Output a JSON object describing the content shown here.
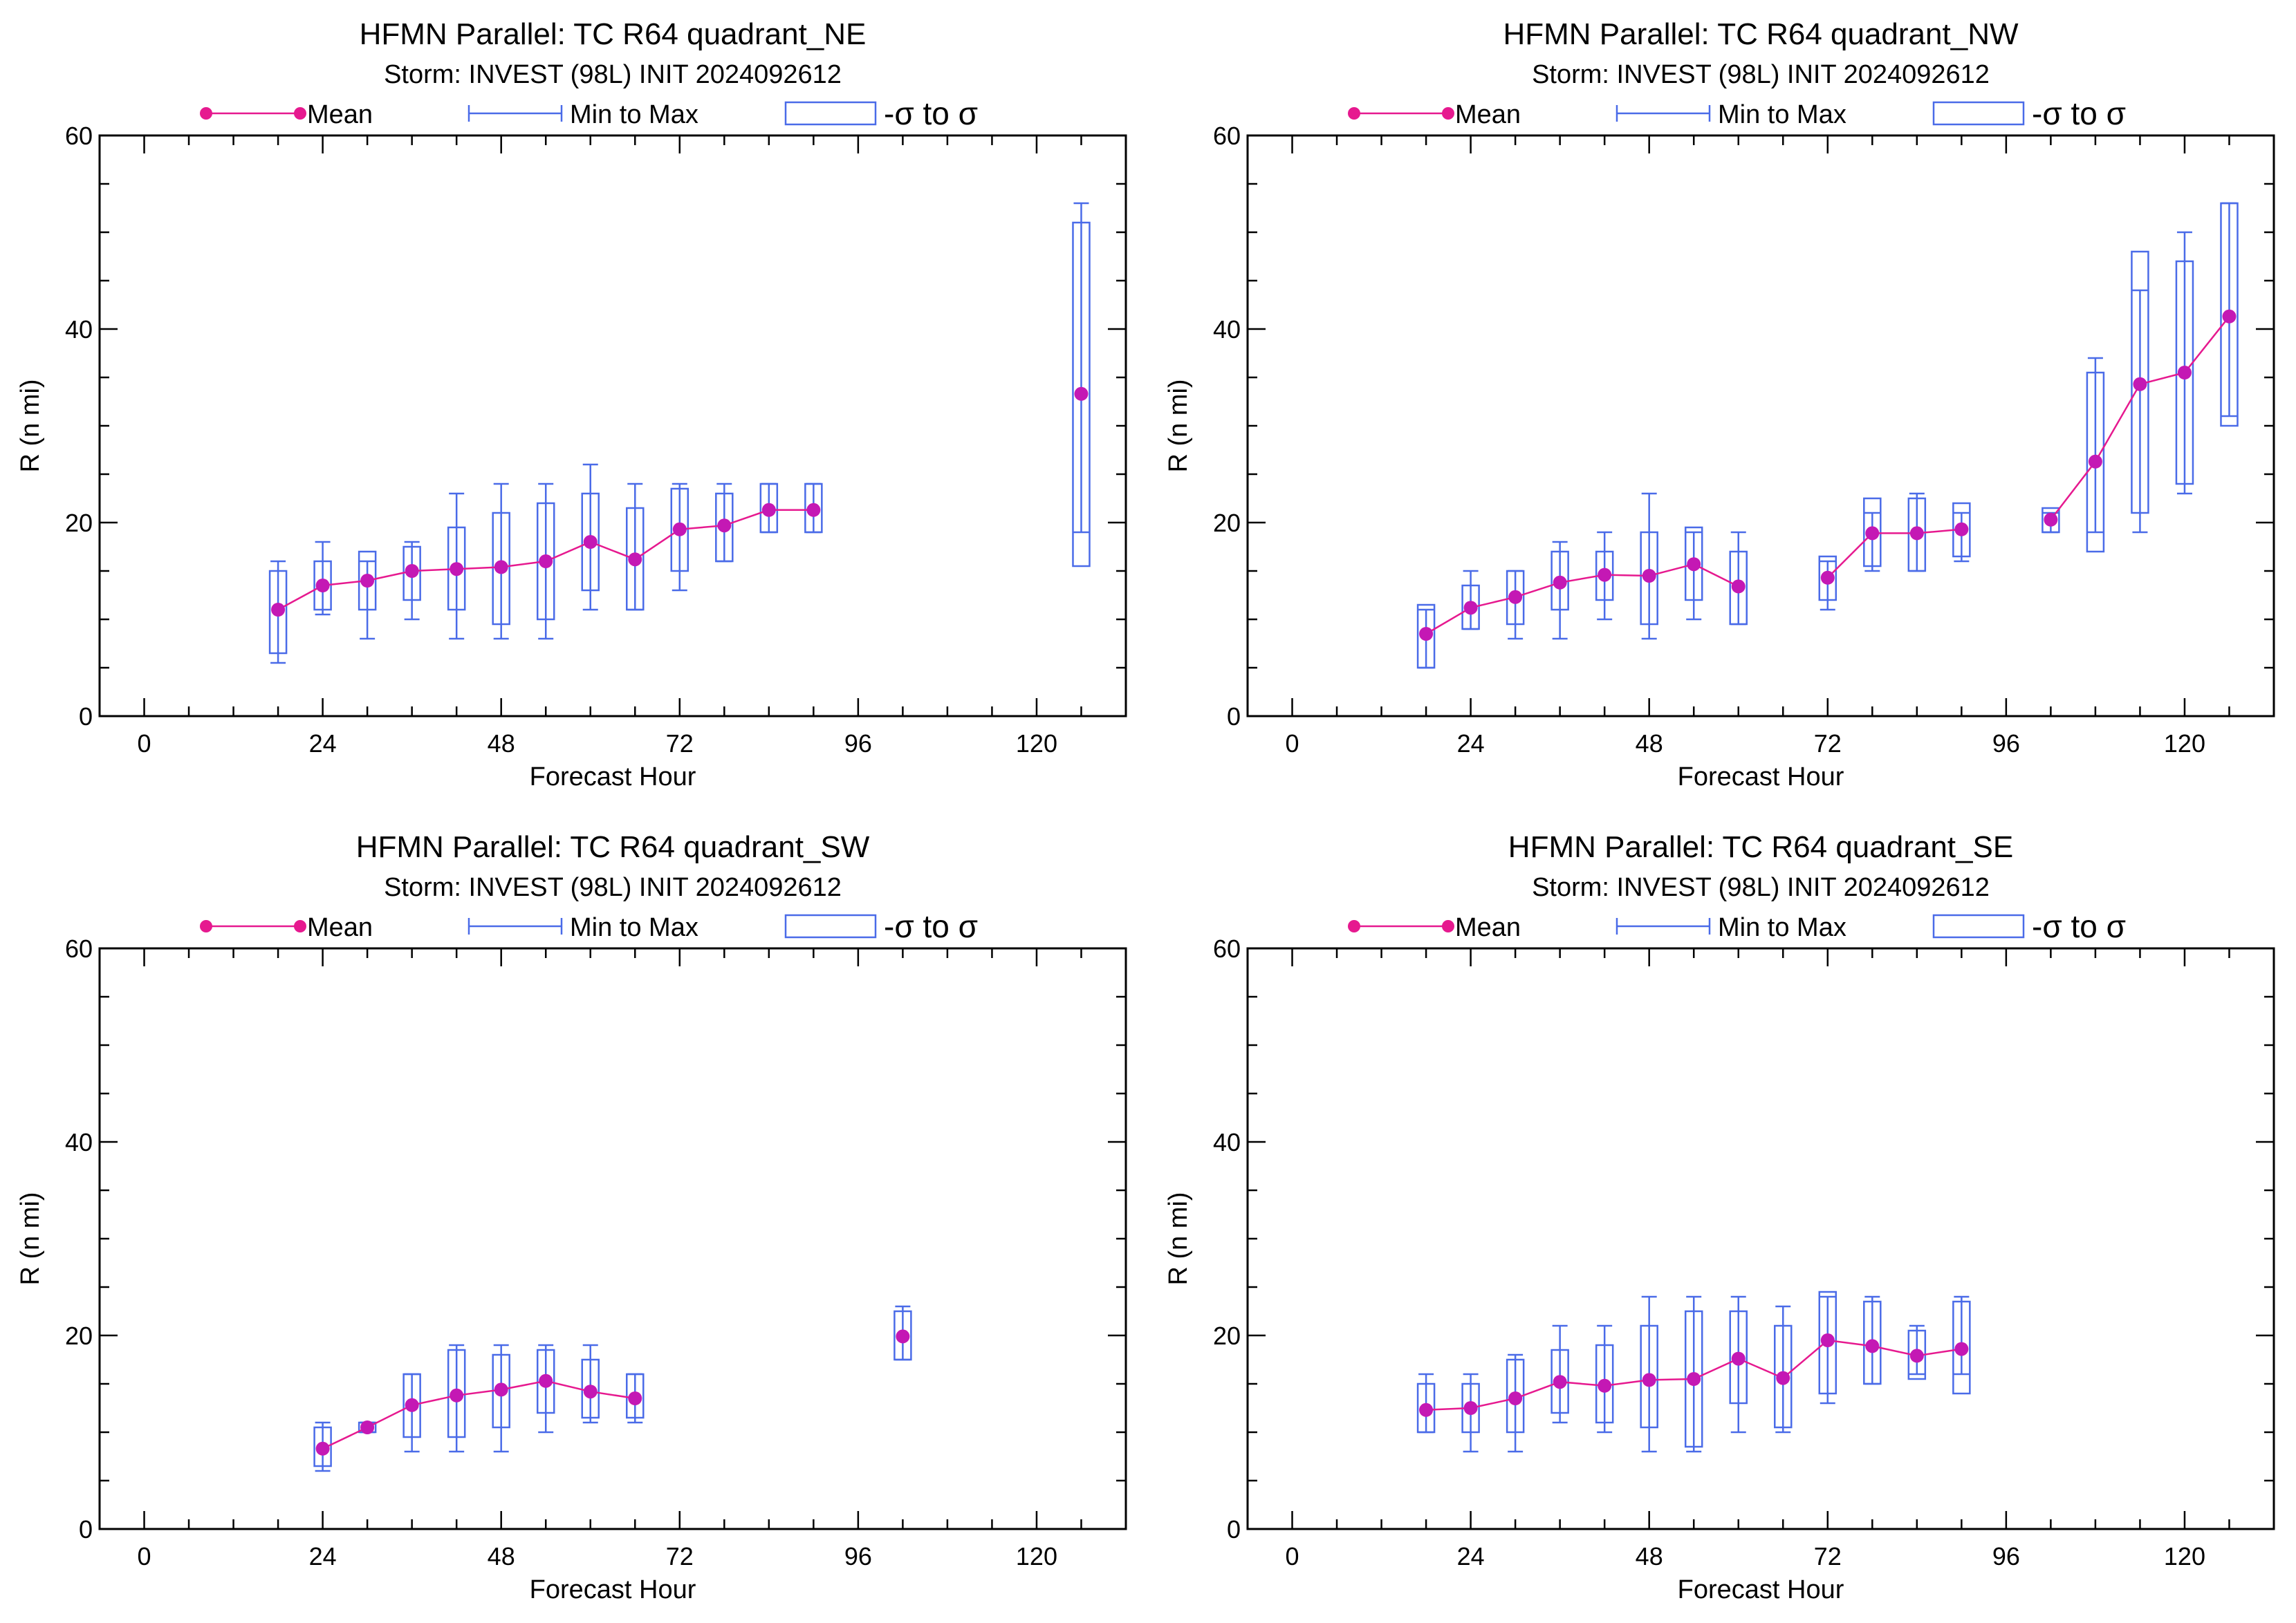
{
  "legend": {
    "mean": "Mean",
    "minmax": "Min to Max",
    "sigma": "-σ to σ"
  },
  "colors": {
    "mean": "#e6198f",
    "mean_dot": "#c418b4",
    "box": "#4a6be8"
  },
  "chart_data": [
    {
      "type": "box",
      "title": "HFMN Parallel: TC  R64 quadrant_NE",
      "subtitle": "Storm: INVEST (98L) INIT 2024092612",
      "xlabel": "Forecast Hour",
      "ylabel": "R (n mi)",
      "xlim": [
        -6,
        132
      ],
      "ylim": [
        0,
        60
      ],
      "xticks": [
        0,
        24,
        48,
        72,
        96,
        120
      ],
      "yticks": [
        0,
        20,
        40,
        60
      ],
      "legend_position": "top",
      "points": [
        {
          "x": 18,
          "mean": 11,
          "min": 5.5,
          "max": 16,
          "sd_lo": 6.5,
          "sd_hi": 15
        },
        {
          "x": 24,
          "mean": 13.5,
          "min": 10.5,
          "max": 18,
          "sd_lo": 11,
          "sd_hi": 16
        },
        {
          "x": 30,
          "mean": 14,
          "min": 8,
          "max": 16,
          "sd_lo": 11,
          "sd_hi": 17
        },
        {
          "x": 36,
          "mean": 15,
          "min": 10,
          "max": 18,
          "sd_lo": 12,
          "sd_hi": 17.5
        },
        {
          "x": 42,
          "mean": 15.2,
          "min": 8,
          "max": 23,
          "sd_lo": 11,
          "sd_hi": 19.5
        },
        {
          "x": 48,
          "mean": 15.4,
          "min": 8,
          "max": 24,
          "sd_lo": 9.5,
          "sd_hi": 21
        },
        {
          "x": 54,
          "mean": 16,
          "min": 8,
          "max": 24,
          "sd_lo": 10,
          "sd_hi": 22
        },
        {
          "x": 60,
          "mean": 18,
          "min": 11,
          "max": 26,
          "sd_lo": 13,
          "sd_hi": 23
        },
        {
          "x": 66,
          "mean": 16.2,
          "min": 11,
          "max": 24,
          "sd_lo": 11,
          "sd_hi": 21.5
        },
        {
          "x": 72,
          "mean": 19.3,
          "min": 13,
          "max": 24,
          "sd_lo": 15,
          "sd_hi": 23.5
        },
        {
          "x": 78,
          "mean": 19.7,
          "min": 16,
          "max": 24,
          "sd_lo": 16,
          "sd_hi": 23
        },
        {
          "x": 84,
          "mean": 21.3,
          "min": 19,
          "max": 24,
          "sd_lo": 19,
          "sd_hi": 24
        },
        {
          "x": 90,
          "mean": 21.3,
          "min": 19,
          "max": 24,
          "sd_lo": 19,
          "sd_hi": 24
        },
        {
          "x": 126,
          "mean": 33.3,
          "min": 19,
          "max": 53,
          "sd_lo": 15.5,
          "sd_hi": 51
        }
      ]
    },
    {
      "type": "box",
      "title": "HFMN Parallel: TC  R64 quadrant_NW",
      "subtitle": "Storm: INVEST (98L) INIT 2024092612",
      "xlabel": "Forecast Hour",
      "ylabel": "R (n mi)",
      "xlim": [
        -6,
        132
      ],
      "ylim": [
        0,
        60
      ],
      "xticks": [
        0,
        24,
        48,
        72,
        96,
        120
      ],
      "yticks": [
        0,
        20,
        40,
        60
      ],
      "legend_position": "top",
      "points": [
        {
          "x": 18,
          "mean": 8.5,
          "min": 5,
          "max": 11,
          "sd_lo": 5,
          "sd_hi": 11.5
        },
        {
          "x": 24,
          "mean": 11.2,
          "min": 9,
          "max": 15,
          "sd_lo": 9,
          "sd_hi": 13.5
        },
        {
          "x": 30,
          "mean": 12.3,
          "min": 8,
          "max": 15,
          "sd_lo": 9.5,
          "sd_hi": 15
        },
        {
          "x": 36,
          "mean": 13.8,
          "min": 8,
          "max": 18,
          "sd_lo": 11,
          "sd_hi": 17
        },
        {
          "x": 42,
          "mean": 14.6,
          "min": 10,
          "max": 19,
          "sd_lo": 12,
          "sd_hi": 17
        },
        {
          "x": 48,
          "mean": 14.5,
          "min": 8,
          "max": 23,
          "sd_lo": 9.5,
          "sd_hi": 19
        },
        {
          "x": 54,
          "mean": 15.7,
          "min": 10,
          "max": 19,
          "sd_lo": 12,
          "sd_hi": 19.5
        },
        {
          "x": 60,
          "mean": 13.4,
          "min": 9.5,
          "max": 19,
          "sd_lo": 9.5,
          "sd_hi": 17
        },
        {
          "x": 72,
          "mean": 14.3,
          "min": 11,
          "max": 16,
          "sd_lo": 12,
          "sd_hi": 16.5
        },
        {
          "x": 78,
          "mean": 18.9,
          "min": 15,
          "max": 21,
          "sd_lo": 15.5,
          "sd_hi": 22.5
        },
        {
          "x": 84,
          "mean": 18.9,
          "min": 15,
          "max": 23,
          "sd_lo": 15,
          "sd_hi": 22.5
        },
        {
          "x": 90,
          "mean": 19.3,
          "min": 16,
          "max": 21,
          "sd_lo": 16.5,
          "sd_hi": 22
        },
        {
          "x": 102,
          "mean": 20.3,
          "min": 19,
          "max": 21,
          "sd_lo": 19,
          "sd_hi": 21.5
        },
        {
          "x": 108,
          "mean": 26.3,
          "min": 19,
          "max": 37,
          "sd_lo": 17,
          "sd_hi": 35.5
        },
        {
          "x": 114,
          "mean": 34.3,
          "min": 19,
          "max": 44,
          "sd_lo": 21,
          "sd_hi": 48
        },
        {
          "x": 120,
          "mean": 35.5,
          "min": 23,
          "max": 50,
          "sd_lo": 24,
          "sd_hi": 47
        },
        {
          "x": 126,
          "mean": 41.3,
          "min": 31,
          "max": 53,
          "sd_lo": 30,
          "sd_hi": 53
        }
      ]
    },
    {
      "type": "box",
      "title": "HFMN Parallel: TC  R64 quadrant_SW",
      "subtitle": "Storm: INVEST (98L) INIT 2024092612",
      "xlabel": "Forecast Hour",
      "ylabel": "R (n mi)",
      "xlim": [
        -6,
        132
      ],
      "ylim": [
        0,
        60
      ],
      "xticks": [
        0,
        24,
        48,
        72,
        96,
        120
      ],
      "yticks": [
        0,
        20,
        40,
        60
      ],
      "legend_position": "top",
      "points": [
        {
          "x": 24,
          "mean": 8.3,
          "min": 6,
          "max": 11,
          "sd_lo": 6.5,
          "sd_hi": 10.5
        },
        {
          "x": 30,
          "mean": 10.5,
          "min": 10,
          "max": 11,
          "sd_lo": 10,
          "sd_hi": 11
        },
        {
          "x": 36,
          "mean": 12.8,
          "min": 8,
          "max": 16,
          "sd_lo": 9.5,
          "sd_hi": 16
        },
        {
          "x": 42,
          "mean": 13.8,
          "min": 8,
          "max": 19,
          "sd_lo": 9.5,
          "sd_hi": 18.5
        },
        {
          "x": 48,
          "mean": 14.4,
          "min": 8,
          "max": 19,
          "sd_lo": 10.5,
          "sd_hi": 18
        },
        {
          "x": 54,
          "mean": 15.3,
          "min": 10,
          "max": 19,
          "sd_lo": 12,
          "sd_hi": 18.5
        },
        {
          "x": 60,
          "mean": 14.2,
          "min": 11,
          "max": 19,
          "sd_lo": 11.5,
          "sd_hi": 17.5
        },
        {
          "x": 66,
          "mean": 13.5,
          "min": 11,
          "max": 16,
          "sd_lo": 11.5,
          "sd_hi": 16
        },
        {
          "x": 102,
          "mean": 19.9,
          "min": 17.5,
          "max": 23,
          "sd_lo": 17.5,
          "sd_hi": 22.5
        }
      ]
    },
    {
      "type": "box",
      "title": "HFMN Parallel: TC  R64 quadrant_SE",
      "subtitle": "Storm: INVEST (98L) INIT 2024092612",
      "xlabel": "Forecast Hour",
      "ylabel": "R (n mi)",
      "xlim": [
        -6,
        132
      ],
      "ylim": [
        0,
        60
      ],
      "xticks": [
        0,
        24,
        48,
        72,
        96,
        120
      ],
      "yticks": [
        0,
        20,
        40,
        60
      ],
      "legend_position": "top",
      "points": [
        {
          "x": 18,
          "mean": 12.3,
          "min": 10,
          "max": 16,
          "sd_lo": 10,
          "sd_hi": 15
        },
        {
          "x": 24,
          "mean": 12.5,
          "min": 8,
          "max": 16,
          "sd_lo": 10,
          "sd_hi": 15
        },
        {
          "x": 30,
          "mean": 13.5,
          "min": 8,
          "max": 18,
          "sd_lo": 10,
          "sd_hi": 17.5
        },
        {
          "x": 36,
          "mean": 15.2,
          "min": 11,
          "max": 21,
          "sd_lo": 12,
          "sd_hi": 18.5
        },
        {
          "x": 42,
          "mean": 14.8,
          "min": 10,
          "max": 21,
          "sd_lo": 11,
          "sd_hi": 19
        },
        {
          "x": 48,
          "mean": 15.4,
          "min": 8,
          "max": 24,
          "sd_lo": 10.5,
          "sd_hi": 21
        },
        {
          "x": 54,
          "mean": 15.5,
          "min": 8,
          "max": 24,
          "sd_lo": 8.5,
          "sd_hi": 22.5
        },
        {
          "x": 60,
          "mean": 17.6,
          "min": 10,
          "max": 24,
          "sd_lo": 13,
          "sd_hi": 22.5
        },
        {
          "x": 66,
          "mean": 15.6,
          "min": 10,
          "max": 23,
          "sd_lo": 10.5,
          "sd_hi": 21
        },
        {
          "x": 72,
          "mean": 19.5,
          "min": 13,
          "max": 24,
          "sd_lo": 14,
          "sd_hi": 24.5
        },
        {
          "x": 78,
          "mean": 18.9,
          "min": 15,
          "max": 24,
          "sd_lo": 15,
          "sd_hi": 23.5
        },
        {
          "x": 84,
          "mean": 17.9,
          "min": 16,
          "max": 21,
          "sd_lo": 15.5,
          "sd_hi": 20.5
        },
        {
          "x": 90,
          "mean": 18.6,
          "min": 16,
          "max": 24,
          "sd_lo": 14,
          "sd_hi": 23.5
        }
      ]
    }
  ]
}
